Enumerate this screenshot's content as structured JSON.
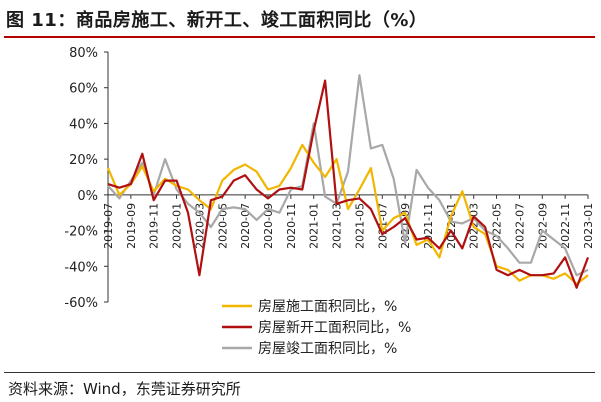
{
  "title": "图 11：商品房施工、新开工、竣工面积同比（%）",
  "source": "资料来源：Wind，东莞证券研究所",
  "chart_data": {
    "type": "line",
    "ylim": [
      -60,
      80
    ],
    "y_ticks": [
      80,
      60,
      40,
      20,
      0,
      -20,
      -40,
      -60
    ],
    "y_tick_labels": [
      "80%",
      "60%",
      "40%",
      "20%",
      "0%",
      "-20%",
      "-40%",
      "-60%"
    ],
    "x": [
      "2019-07",
      "2019-08",
      "2019-09",
      "2019-10",
      "2019-11",
      "2019-12",
      "2020-01",
      "2020-02",
      "2020-03",
      "2020-04",
      "2020-05",
      "2020-06",
      "2020-07",
      "2020-08",
      "2020-09",
      "2020-10",
      "2020-11",
      "2020-12",
      "2021-01",
      "2021-02",
      "2021-03",
      "2021-04",
      "2021-05",
      "2021-06",
      "2021-07",
      "2021-08",
      "2021-09",
      "2021-10",
      "2021-11",
      "2021-12",
      "2022-01",
      "2022-02",
      "2022-03",
      "2022-04",
      "2022-05",
      "2022-06",
      "2022-07",
      "2022-08",
      "2022-09",
      "2022-10",
      "2022-11",
      "2022-12",
      "2023-01"
    ],
    "x_tick_labels": [
      "2019-07",
      "2019-09",
      "2019-11",
      "2020-01",
      "2020-03",
      "2020-05",
      "2020-07",
      "2020-09",
      "2020-11",
      "2021-01",
      "2021-03",
      "2021-05",
      "2021-07",
      "2021-09",
      "2021-11",
      "2022-01",
      "2022-03",
      "2022-05",
      "2022-07",
      "2022-09",
      "2022-11",
      "2023-01"
    ],
    "legend_position": "bottom-center",
    "series": [
      {
        "name": "房屋施工面积同比，%",
        "color": "#f2b600",
        "values": [
          15,
          0,
          6,
          16,
          2,
          9,
          5,
          3,
          -3,
          -8,
          8,
          14,
          17,
          13,
          3,
          5,
          15,
          28,
          18,
          10,
          20,
          -8,
          3,
          15,
          -20,
          -13,
          -10,
          -28,
          -25,
          -35,
          -12,
          2,
          -18,
          -22,
          -40,
          -42,
          -48,
          -45,
          -45,
          -47,
          -44,
          -50,
          -45
        ]
      },
      {
        "name": "房屋新开工面积同比，%",
        "color": "#b01010",
        "values": [
          6,
          4,
          6,
          23,
          -3,
          8,
          8,
          -10,
          -45,
          -3,
          -1,
          8,
          11,
          3,
          -2,
          3,
          4,
          3,
          36,
          64,
          -5,
          -3,
          -2,
          -8,
          -22,
          -18,
          -13,
          -25,
          -24,
          -30,
          -20,
          -30,
          -12,
          -18,
          -42,
          -45,
          -42,
          -45,
          -45,
          -44,
          -35,
          -52,
          -35
        ]
      },
      {
        "name": "房屋竣工面积同比，%",
        "color": "#a8a8a8",
        "values": [
          5,
          -2,
          8,
          18,
          0,
          20,
          3,
          -5,
          -10,
          -18,
          -8,
          -7,
          -8,
          -14,
          -8,
          -10,
          3,
          5,
          40,
          -1,
          -5,
          13,
          67,
          26,
          28,
          9,
          -27,
          14,
          4,
          -3,
          -15,
          -16,
          -13,
          -20,
          -23,
          -30,
          -38,
          -38,
          -20,
          -25,
          -30,
          -45,
          -42
        ]
      }
    ]
  }
}
